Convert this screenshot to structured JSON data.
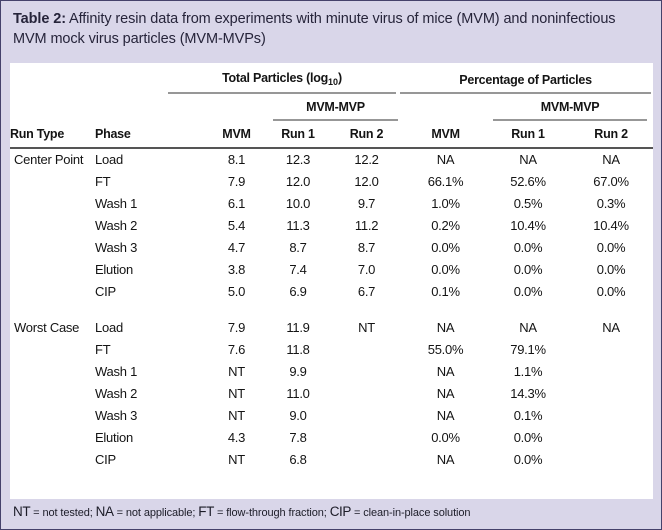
{
  "title": {
    "label": "Table 2:",
    "text": " Affinity resin data from experiments with minute virus of mice (MVM) and noninfectious MVM mock virus particles (MVM-MVPs)"
  },
  "table": {
    "group_headers": {
      "total_pre": "Total Particles (log",
      "total_sub": "10",
      "total_post": ")",
      "percentage": "Percentage of Particles",
      "subgroup": "MVM-MVP"
    },
    "columns": [
      "Run Type",
      "Phase",
      "MVM",
      "Run 1",
      "Run 2",
      "MVM",
      "Run 1",
      "Run 2"
    ],
    "sections": [
      {
        "name": "Center Point",
        "rows": [
          {
            "phase": "Load",
            "values": [
              "8.1",
              "12.3",
              "12.2",
              "NA",
              "NA",
              "NA"
            ]
          },
          {
            "phase": "FT",
            "values": [
              "7.9",
              "12.0",
              "12.0",
              "66.1%",
              "52.6%",
              "67.0%"
            ]
          },
          {
            "phase": "Wash 1",
            "values": [
              "6.1",
              "10.0",
              "9.7",
              "1.0%",
              "0.5%",
              "0.3%"
            ]
          },
          {
            "phase": "Wash 2",
            "values": [
              "5.4",
              "11.3",
              "11.2",
              "0.2%",
              "10.4%",
              "10.4%"
            ]
          },
          {
            "phase": "Wash 3",
            "values": [
              "4.7",
              "8.7",
              "8.7",
              "0.0%",
              "0.0%",
              "0.0%"
            ]
          },
          {
            "phase": "Elution",
            "values": [
              "3.8",
              "7.4",
              "7.0",
              "0.0%",
              "0.0%",
              "0.0%"
            ]
          },
          {
            "phase": "CIP",
            "values": [
              "5.0",
              "6.9",
              "6.7",
              "0.1%",
              "0.0%",
              "0.0%"
            ]
          }
        ]
      },
      {
        "name": "Worst Case",
        "rows": [
          {
            "phase": "Load",
            "values": [
              "7.9",
              "11.9",
              "NT",
              "NA",
              "NA",
              "NA"
            ]
          },
          {
            "phase": "FT",
            "values": [
              "7.6",
              "11.8",
              "",
              "55.0%",
              "79.1%",
              ""
            ]
          },
          {
            "phase": "Wash 1",
            "values": [
              "NT",
              "9.9",
              "",
              "NA",
              "1.1%",
              ""
            ]
          },
          {
            "phase": "Wash 2",
            "values": [
              "NT",
              "11.0",
              "",
              "NA",
              "14.3%",
              ""
            ]
          },
          {
            "phase": "Wash 3",
            "values": [
              "NT",
              "9.0",
              "",
              "NA",
              "0.1%",
              ""
            ]
          },
          {
            "phase": "Elution",
            "values": [
              "4.3",
              "7.8",
              "",
              "0.0%",
              "0.0%",
              ""
            ]
          },
          {
            "phase": "CIP",
            "values": [
              "NT",
              "6.8",
              "",
              "NA",
              "0.0%",
              ""
            ]
          }
        ]
      }
    ]
  },
  "footnote": {
    "items": [
      {
        "abbr": "NT",
        "def": " = not tested; "
      },
      {
        "abbr": "NA",
        "def": " = not applicable; "
      },
      {
        "abbr": "FT",
        "def": " = flow-through fraction; "
      },
      {
        "abbr": "CIP",
        "def": " = clean-in-place solution"
      }
    ]
  },
  "colors": {
    "background": "#d9d6e9",
    "panel": "#ffffff",
    "edge_border": "#45426b",
    "rule_dark": "#555555",
    "rule_gray": "#979797",
    "text": "#141414",
    "title_text": "#26243a"
  }
}
